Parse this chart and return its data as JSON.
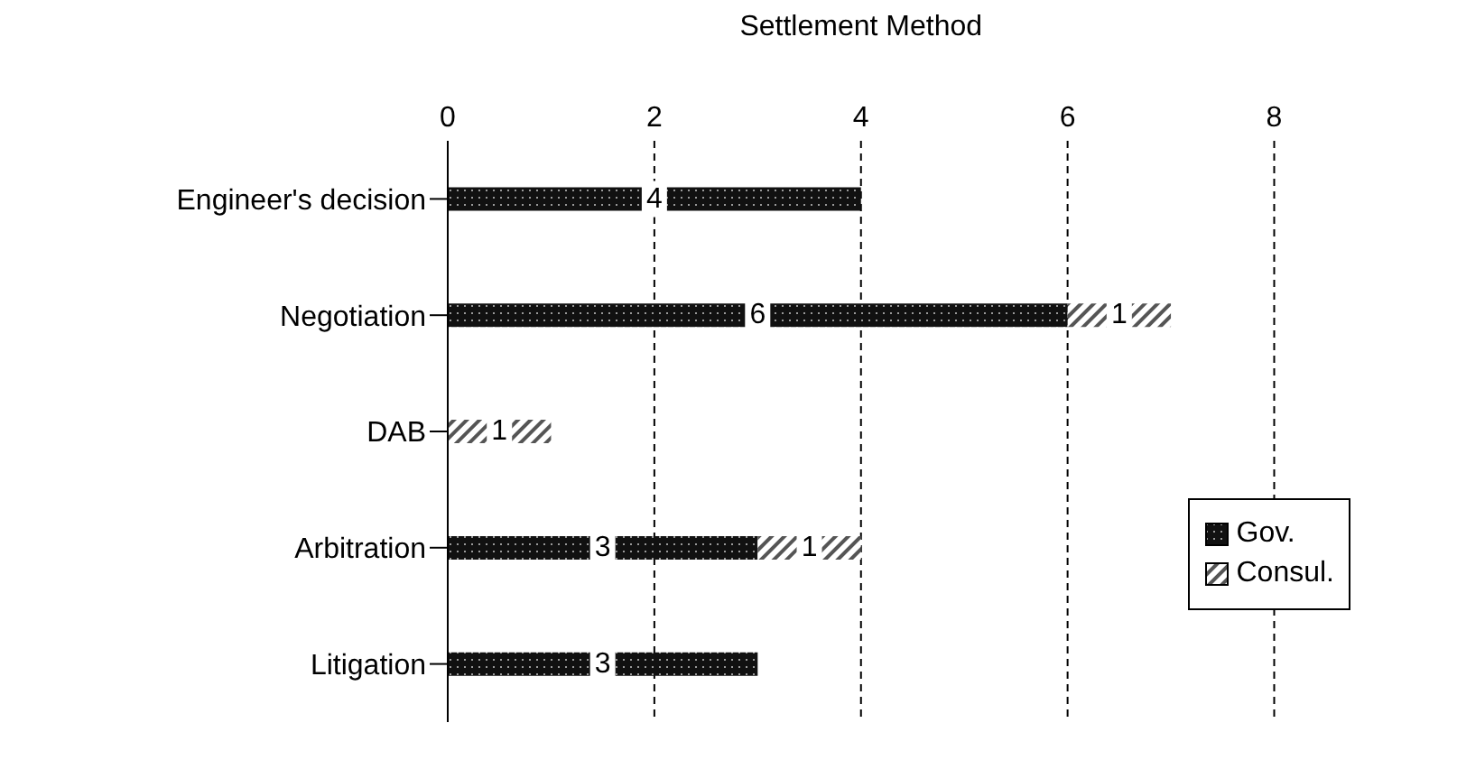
{
  "chart_data": {
    "type": "bar",
    "orientation": "horizontal",
    "stacked": true,
    "xlabel": "Settlement Method",
    "categories": [
      "Engineer's decision",
      "Negotiation",
      "DAB",
      "Arbitration",
      "Litigation"
    ],
    "series": [
      {
        "name": "Gov.",
        "color": "#111111",
        "values": [
          4,
          6,
          0,
          3,
          3
        ],
        "value_labels": [
          "4",
          "6",
          null,
          "3",
          "3"
        ]
      },
      {
        "name": "Consul.",
        "color": "#555555",
        "values": [
          0,
          1,
          1,
          1,
          0
        ],
        "value_labels": [
          null,
          "1",
          "1",
          "1",
          null
        ]
      }
    ],
    "xlim": [
      0,
      8
    ],
    "xticks": [
      0,
      2,
      4,
      6,
      8
    ],
    "grid": "x",
    "legend": "right"
  }
}
